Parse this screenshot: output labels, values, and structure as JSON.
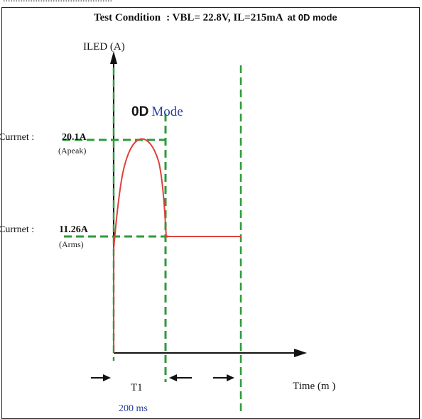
{
  "header": {
    "test_condition_label": "Test Condition",
    "test_condition_values": ": VBL= 22.8V,  IL=215mA",
    "test_condition_mode": "at 0D mode"
  },
  "diagram": {
    "y_axis_label": "ILED (A)",
    "x_axis_label": "Time (m )",
    "mode_label_bold": "0D",
    "mode_label_rest": "Mode",
    "peak_label": "Currnet :",
    "peak_value": "20.1A",
    "peak_sub": "(Apeak)",
    "rms_label": "Currnet :",
    "rms_value": "11.26A",
    "rms_sub": "(Arms)",
    "interval_label": "T1",
    "duration_label": "200  ms"
  },
  "colors": {
    "waveform": "#e0403a",
    "guides": "#2e9a3a",
    "axes": "#111111",
    "accent_text": "#2a3fa0"
  }
}
